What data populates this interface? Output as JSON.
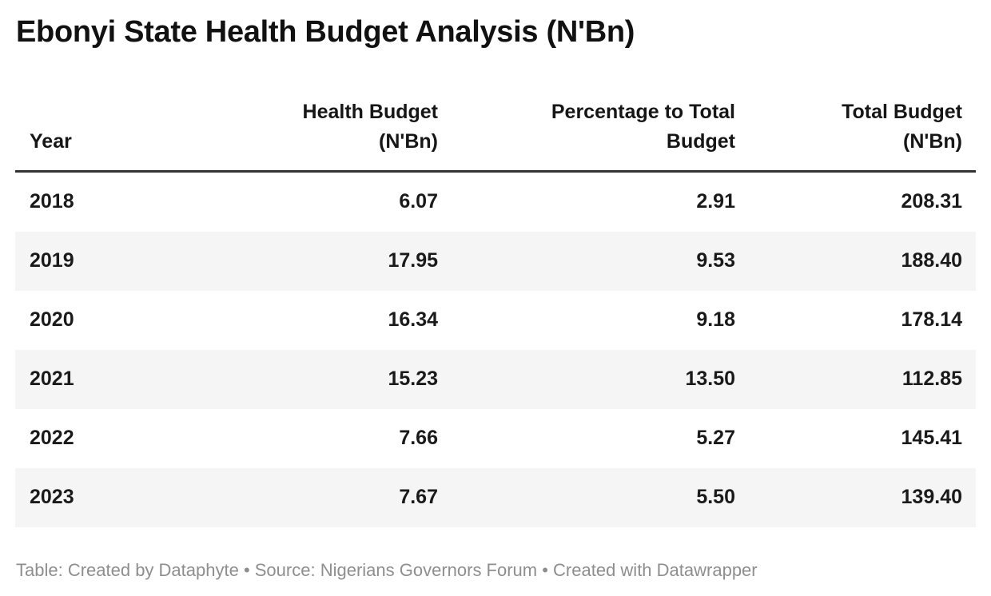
{
  "title": "Ebonyi State Health Budget Analysis (N'Bn)",
  "table": {
    "columns": [
      {
        "id": "year",
        "label": "Year",
        "lines": [
          "Year"
        ],
        "align": "left"
      },
      {
        "id": "health-budget",
        "label": "Health Budget (N'Bn)",
        "lines": [
          "Health Budget",
          "(N'Bn)"
        ],
        "align": "right"
      },
      {
        "id": "percentage-to-total-budget",
        "label": "Percentage to Total Budget",
        "lines": [
          "Percentage to Total",
          "Budget"
        ],
        "align": "right"
      },
      {
        "id": "total-budget",
        "label": "Total Budget (N'Bn)",
        "lines": [
          "Total Budget",
          "(N'Bn)"
        ],
        "align": "right"
      }
    ],
    "rows": [
      [
        "2018",
        "6.07",
        "2.91",
        "208.31"
      ],
      [
        "2019",
        "17.95",
        "9.53",
        "188.40"
      ],
      [
        "2020",
        "16.34",
        "9.18",
        "178.14"
      ],
      [
        "2021",
        "15.23",
        "13.50",
        "112.85"
      ],
      [
        "2022",
        "7.66",
        "5.27",
        "145.41"
      ],
      [
        "2023",
        "7.67",
        "5.50",
        "139.40"
      ]
    ]
  },
  "footer": "Table: Created by Dataphyte • Source: Nigerians Governors Forum • Created with Datawrapper",
  "colors": {
    "background": "#ffffff",
    "title_text": "#111111",
    "header_text": "#161616",
    "header_rule": "#333333",
    "cell_text": "#1a1a1a",
    "row_stripe": "#f5f5f5",
    "footer_text": "#8e8e8e"
  },
  "chart_data": {
    "type": "table",
    "title": "Ebonyi State Health Budget Analysis (N'Bn)",
    "columns": [
      "Year",
      "Health Budget (N'Bn)",
      "Percentage to Total Budget",
      "Total Budget (N'Bn)"
    ],
    "rows": [
      [
        2018,
        6.07,
        2.91,
        208.31
      ],
      [
        2019,
        17.95,
        9.53,
        188.4
      ],
      [
        2020,
        16.34,
        9.18,
        178.14
      ],
      [
        2021,
        15.23,
        13.5,
        112.85
      ],
      [
        2022,
        7.66,
        5.27,
        145.41
      ],
      [
        2023,
        7.67,
        5.5,
        139.4
      ]
    ],
    "notes": "Alternating row stripes on 2019, 2021, 2023; all table text bold; footer attribution in gray"
  }
}
